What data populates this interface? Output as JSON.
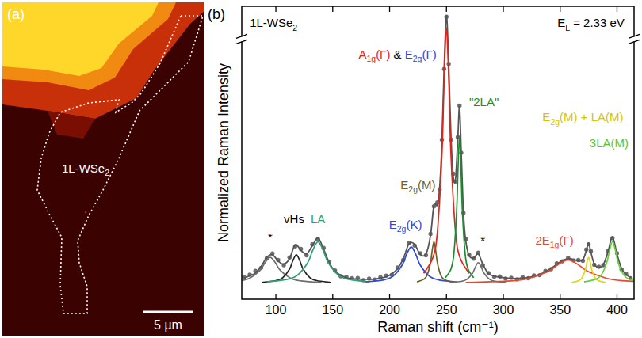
{
  "image_panel": {
    "panel_label": "(a)",
    "region_label": "1L-WSe2",
    "scale_bar": "5 µm"
  },
  "chart_data": {
    "type": "line",
    "panel_label": "(b)",
    "x_label": "Raman shift (cm⁻¹)",
    "y_label": "Normalized Raman Intensity",
    "xlim": [
      70,
      415
    ],
    "ylim": [
      -0.06,
      1.06
    ],
    "xticks": [
      100,
      150,
      200,
      250,
      300,
      350,
      400
    ],
    "tick_labels": "x",
    "grid": false,
    "annotations": [
      {
        "text": "1L-WSe2",
        "x": 98,
        "y": 0.98,
        "color": "#000000"
      },
      {
        "text": "EL = 2.33 eV",
        "x": 377,
        "y": 0.98,
        "color": "#000000"
      },
      {
        "text": "*",
        "x": 95,
        "y": 0.16,
        "color": "#000000"
      },
      {
        "text": "vHs",
        "x": 116,
        "y": 0.23,
        "color": "#000000"
      },
      {
        "text": "LA",
        "x": 137,
        "y": 0.23,
        "color": "#2e9e74"
      },
      {
        "text": "E2g(K)",
        "x": 214,
        "y": 0.21,
        "color": "#2f49d8"
      },
      {
        "text": "E2g(M)",
        "x": 225,
        "y": 0.36,
        "color": "#6e6128"
      },
      {
        "parts": [
          {
            "text": "A1g(Γ)",
            "color": "#e3241b"
          },
          {
            "text": " & ",
            "color": "#000000"
          },
          {
            "text": "E2g(Γ)",
            "color": "#2f49d8"
          }
        ],
        "x": 207,
        "y": 0.86
      },
      {
        "text": "\"2LA\"",
        "x": 283,
        "y": 0.68,
        "color": "#1a8c2e"
      },
      {
        "text": "*",
        "x": 282,
        "y": 0.15,
        "color": "#000000"
      },
      {
        "text": "2E1g(Γ)",
        "x": 345,
        "y": 0.15,
        "color": "#e8472f"
      },
      {
        "text": "E2g(M) + LA(M)",
        "x": 370,
        "y": 0.62,
        "color": "#d9c400"
      },
      {
        "text": "3LA(M)",
        "x": 393,
        "y": 0.52,
        "color": "#55c830"
      }
    ],
    "series": [
      {
        "type": "scatter",
        "color": "#555555",
        "marker": "circle",
        "x": [
          72,
          77,
          82,
          87,
          92,
          97,
          102,
          107,
          112,
          117,
          122,
          127,
          132,
          137,
          142,
          147,
          152,
          157,
          162,
          167,
          172,
          177,
          182,
          187,
          192,
          197,
          202,
          207,
          212,
          217,
          222,
          227,
          232,
          236,
          239,
          242,
          244,
          246,
          248,
          250,
          252,
          254,
          256,
          258,
          260,
          261.5,
          263,
          265,
          267,
          270,
          274,
          278,
          282,
          287,
          292,
          297,
          302,
          307,
          312,
          317,
          322,
          327,
          332,
          337,
          342,
          347,
          352,
          357,
          362,
          366,
          370,
          373,
          375,
          377,
          380,
          384,
          388,
          392,
          396,
          400,
          404,
          408,
          412
        ],
        "values": [
          0.025,
          0.034,
          0.048,
          0.06,
          0.097,
          0.115,
          0.09,
          0.07,
          0.1,
          0.142,
          0.132,
          0.108,
          0.15,
          0.17,
          0.136,
          0.083,
          0.05,
          0.028,
          0.026,
          0.02,
          0.021,
          0.013,
          0.019,
          0.015,
          0.024,
          0.03,
          0.033,
          0.061,
          0.09,
          0.156,
          0.145,
          0.116,
          0.108,
          0.19,
          0.295,
          0.31,
          0.36,
          0.55,
          0.82,
          1.02,
          0.84,
          0.55,
          0.42,
          0.39,
          0.56,
          0.68,
          0.5,
          0.27,
          0.17,
          0.11,
          0.095,
          0.118,
          0.07,
          0.04,
          0.026,
          0.027,
          0.019,
          0.022,
          0.016,
          0.024,
          0.02,
          0.031,
          0.032,
          0.048,
          0.055,
          0.077,
          0.085,
          0.098,
          0.088,
          0.09,
          0.087,
          0.13,
          0.15,
          0.124,
          0.072,
          0.064,
          0.07,
          0.124,
          0.174,
          0.116,
          0.054,
          0.037,
          0.02
        ]
      },
      {
        "type": "line",
        "color": "#555555",
        "line_style": "solid",
        "x": [
          72,
          77,
          82,
          87,
          92,
          97,
          102,
          107,
          112,
          117,
          122,
          127,
          132,
          137,
          142,
          147,
          152,
          157,
          162,
          167,
          172,
          177,
          182,
          187,
          192,
          197,
          202,
          207,
          212,
          217,
          222,
          227,
          232,
          236,
          239,
          242,
          244,
          246,
          248,
          250,
          252,
          254,
          256,
          258,
          260,
          261.5,
          263,
          265,
          267,
          270,
          274,
          278,
          282,
          287,
          292,
          297,
          302,
          307,
          312,
          317,
          322,
          327,
          332,
          337,
          342,
          347,
          352,
          357,
          362,
          366,
          370,
          373,
          375,
          377,
          380,
          384,
          388,
          392,
          396,
          400,
          404,
          408,
          412
        ],
        "values": [
          0.02,
          0.03,
          0.04,
          0.065,
          0.1,
          0.11,
          0.086,
          0.074,
          0.095,
          0.148,
          0.127,
          0.113,
          0.144,
          0.174,
          0.131,
          0.079,
          0.047,
          0.032,
          0.022,
          0.018,
          0.017,
          0.016,
          0.016,
          0.017,
          0.021,
          0.026,
          0.037,
          0.057,
          0.094,
          0.151,
          0.15,
          0.111,
          0.113,
          0.184,
          0.3,
          0.3,
          0.366,
          0.54,
          0.828,
          1.024,
          0.835,
          0.56,
          0.41,
          0.4,
          0.555,
          0.675,
          0.505,
          0.267,
          0.163,
          0.106,
          0.098,
          0.113,
          0.074,
          0.037,
          0.029,
          0.024,
          0.022,
          0.019,
          0.019,
          0.021,
          0.023,
          0.028,
          0.035,
          0.045,
          0.058,
          0.073,
          0.088,
          0.095,
          0.092,
          0.086,
          0.091,
          0.126,
          0.154,
          0.12,
          0.075,
          0.061,
          0.073,
          0.12,
          0.178,
          0.112,
          0.057,
          0.034,
          0.023
        ]
      },
      {
        "type": "line",
        "color": "#6e6e6e",
        "line_style": "solid",
        "x": [
          50,
          68,
          77,
          86,
          90.5,
          95,
          99.5,
          104,
          113,
          122,
          140
        ],
        "values": [
          0.004,
          0.01,
          0.02,
          0.05,
          0.08,
          0.1,
          0.08,
          0.05,
          0.02,
          0.01,
          0.004
        ]
      },
      {
        "type": "line",
        "color": "#222222",
        "line_style": "solid",
        "x": [
          88,
          100,
          106,
          112,
          115,
          118,
          121,
          124,
          130,
          136,
          148
        ],
        "values": [
          0.004,
          0.011,
          0.022,
          0.055,
          0.088,
          0.11,
          0.088,
          0.055,
          0.022,
          0.011,
          0.004
        ]
      },
      {
        "type": "line",
        "color": "#2e9e74",
        "line_style": "solid",
        "x": [
          92,
          110,
          119,
          128,
          132.5,
          137,
          141.5,
          146,
          155,
          164,
          182
        ],
        "values": [
          0.006,
          0.016,
          0.032,
          0.08,
          0.128,
          0.16,
          0.128,
          0.08,
          0.032,
          0.016,
          0.006
        ]
      },
      {
        "type": "line",
        "color": "#2f49d8",
        "line_style": "solid",
        "x": [
          179,
          195,
          203,
          211,
          215,
          219,
          223,
          227,
          235,
          243,
          259
        ],
        "values": [
          0.006,
          0.014,
          0.028,
          0.07,
          0.112,
          0.14,
          0.112,
          0.07,
          0.028,
          0.014,
          0.006
        ]
      },
      {
        "type": "line",
        "color": "#6e6128",
        "line_style": "solid",
        "x": [
          224,
          230,
          233,
          236,
          237.5,
          239,
          240.5,
          242,
          245,
          248,
          254
        ],
        "values": [
          0.006,
          0.016,
          0.032,
          0.08,
          0.128,
          0.16,
          0.128,
          0.08,
          0.032,
          0.016,
          0.006
        ]
      },
      {
        "type": "line",
        "color": "#e3241b",
        "line_style": "solid",
        "x": [
          230,
          238,
          242,
          246,
          248,
          250,
          252,
          254,
          258,
          262,
          270
        ],
        "values": [
          0.039,
          0.098,
          0.196,
          0.49,
          0.784,
          0.98,
          0.784,
          0.49,
          0.196,
          0.098,
          0.039
        ]
      },
      {
        "type": "line",
        "color": "#1a8c2e",
        "line_style": "solid",
        "x": [
          249,
          254,
          256.5,
          259,
          260.25,
          261.5,
          262.75,
          264,
          266.5,
          269,
          274
        ],
        "values": [
          0.022,
          0.056,
          0.112,
          0.28,
          0.448,
          0.56,
          0.448,
          0.28,
          0.112,
          0.056,
          0.022
        ]
      },
      {
        "type": "line",
        "color": "#6e6e6e",
        "line_style": "solid",
        "x": [
          253,
          263,
          268,
          273,
          275.5,
          278,
          280.5,
          283,
          288,
          293,
          303
        ],
        "values": [
          0.003,
          0.008,
          0.016,
          0.04,
          0.064,
          0.08,
          0.064,
          0.04,
          0.016,
          0.008,
          0.003
        ]
      },
      {
        "type": "line",
        "color": "#e8472f",
        "line_style": "solid",
        "x": [
          267,
          303,
          321,
          339,
          348,
          357,
          366,
          375,
          393,
          411,
          447
        ],
        "values": [
          0.004,
          0.009,
          0.018,
          0.045,
          0.072,
          0.09,
          0.072,
          0.045,
          0.018,
          0.009,
          0.004
        ]
      },
      {
        "type": "line",
        "color": "#e6d617",
        "line_style": "solid",
        "x": [
          360,
          366,
          369,
          372,
          373.5,
          375,
          376.5,
          378,
          381,
          384,
          390
        ],
        "values": [
          0.004,
          0.01,
          0.02,
          0.05,
          0.08,
          0.1,
          0.08,
          0.05,
          0.02,
          0.01,
          0.004
        ]
      },
      {
        "type": "line",
        "color": "#62d23a",
        "line_style": "solid",
        "x": [
          371,
          381,
          386,
          391,
          393.5,
          396,
          398.5,
          401,
          406,
          411,
          421
        ],
        "values": [
          0.006,
          0.016,
          0.032,
          0.08,
          0.128,
          0.16,
          0.128,
          0.08,
          0.032,
          0.016,
          0.006
        ]
      }
    ]
  }
}
